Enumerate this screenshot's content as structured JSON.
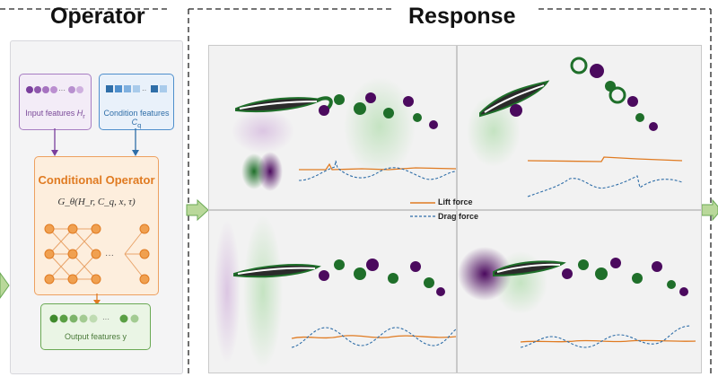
{
  "sections": {
    "operator_title": "Operator",
    "response_title": "Response"
  },
  "operator": {
    "input_label": "Input features",
    "input_symbol": "H",
    "input_subscript": "r",
    "condition_label": "Condition features",
    "condition_symbol": "C",
    "condition_subscript": "q",
    "operator_name": "Conditional Operator",
    "operator_formula": "G_θ(H_r, C_q, x, τ)",
    "output_label": "Output features y"
  },
  "legend": {
    "lift_label": "Lift force",
    "drag_label": "Drag force"
  },
  "colors": {
    "purple": "#a77dc2",
    "blue": "#4f8fcc",
    "orange": "#e07b22",
    "green": "#6aa954",
    "vortex_green": "#1f6f2a",
    "vortex_purple": "#4b0a5e",
    "lift_line": "#e07b22",
    "drag_line": "#2f6ea8"
  }
}
